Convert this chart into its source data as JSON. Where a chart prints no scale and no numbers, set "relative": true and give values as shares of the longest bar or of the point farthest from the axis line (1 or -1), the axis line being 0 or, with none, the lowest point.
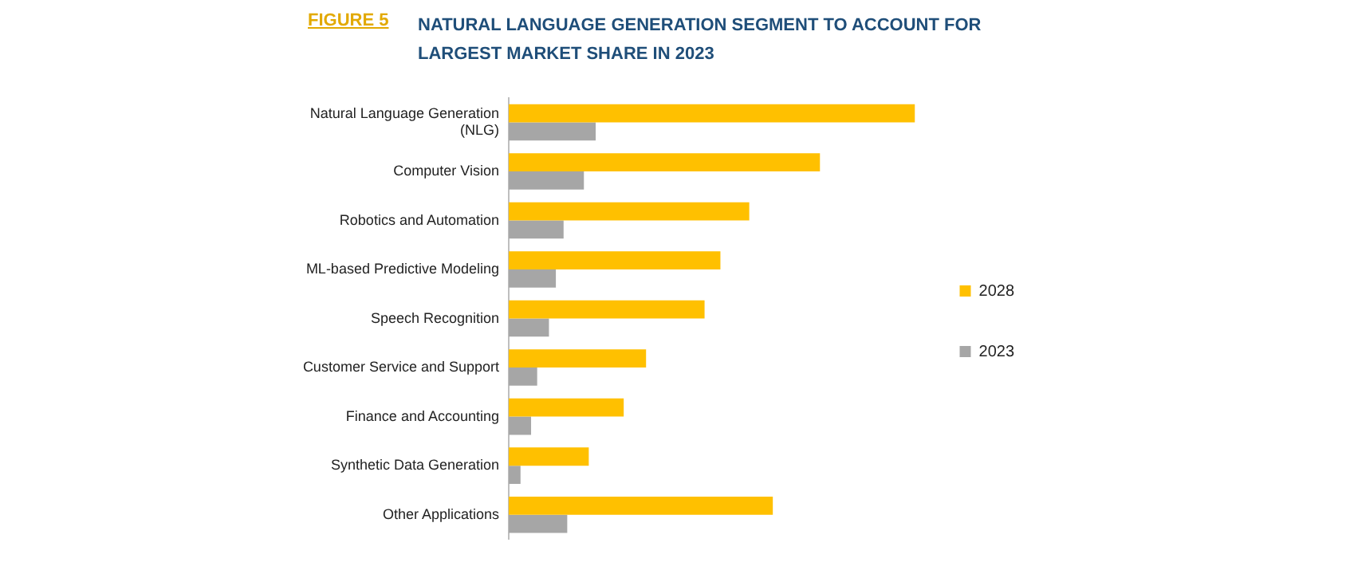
{
  "chart_data": {
    "type": "bar",
    "orientation": "horizontal",
    "relative": true,
    "title": "NATURAL LANGUAGE GENERATION SEGMENT TO ACCOUNT FOR LARGEST MARKET SHARE IN 2023",
    "annotations": [
      "FIGURE 5"
    ],
    "categories": [
      "Natural Language Generation (NLG)",
      "Computer Vision",
      "Robotics and Automation",
      "ML-based Predictive Modeling",
      "Speech Recognition",
      "Customer Service and Support",
      "Finance and Accounting",
      "Synthetic Data Generation",
      "Other Applications"
    ],
    "series": [
      {
        "name": "2028",
        "color": "#ffc000",
        "values": [
          1,
          0.766,
          0.592,
          0.521,
          0.482,
          0.338,
          0.283,
          0.197,
          0.65
        ]
      },
      {
        "name": "2023",
        "color": "#a6a6a6",
        "values": [
          0.214,
          0.185,
          0.135,
          0.116,
          0.099,
          0.07,
          0.055,
          0.029,
          0.144
        ]
      }
    ],
    "legend": "right"
  }
}
